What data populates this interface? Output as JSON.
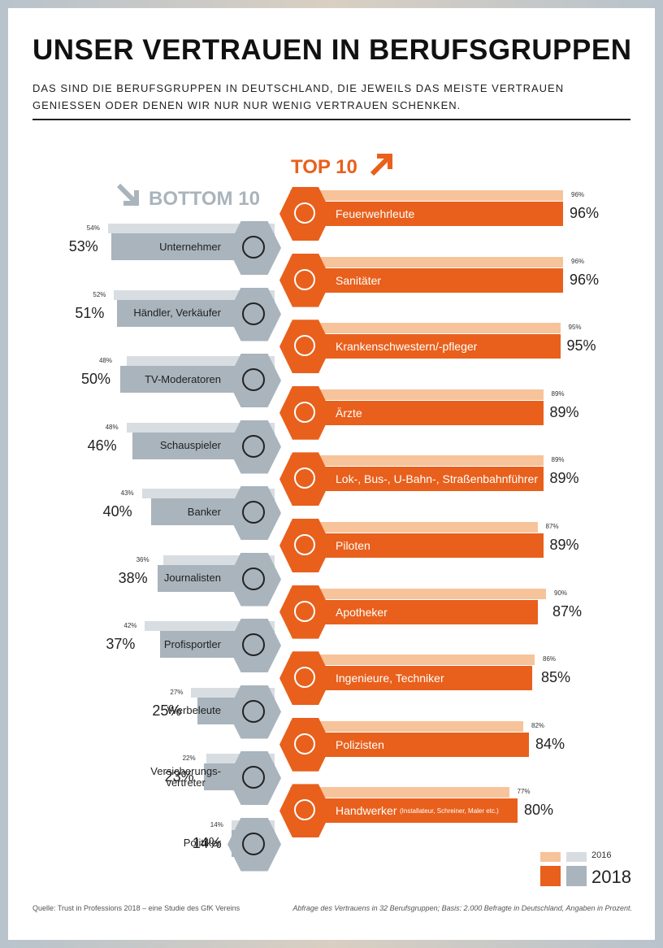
{
  "header": {
    "title": "UNSER VERTRAUEN IN BERUFSGRUPPEN",
    "subtitle": "DAS SIND DIE BERUFSGRUPPEN IN DEUTSCHLAND, DIE JEWEILS DAS MEISTE VERTRAUEN GENIESSEN ODER DENEN WIR NUR NUR WENIG VERTRAUEN SCHENKEN."
  },
  "chart_data": [
    {
      "type": "bar",
      "title": "TOP 10",
      "categories": [
        "Feuerwehrleute",
        "Sanitäter",
        "Krankenschwestern/-pfleger",
        "Ärzte",
        "Lok-, Bus-, U-Bahn-, Straßenbahnführer",
        "Piloten",
        "Apotheker",
        "Ingenieure, Techniker",
        "Polizisten",
        "Handwerker"
      ],
      "note": "(Installateur, Schreiner, Maler etc.)",
      "series": [
        {
          "name": "2016",
          "color": "#f7c39b",
          "values": [
            96,
            96,
            95,
            89,
            89,
            87,
            90,
            86,
            82,
            77
          ],
          "value_labels": [
            "96%",
            "96%",
            "95%",
            "89%",
            "89%",
            "87%",
            "90%",
            "86%",
            "82%",
            "77%"
          ]
        },
        {
          "name": "2018",
          "color": "#e8601c",
          "values": [
            96,
            96,
            95,
            89,
            89,
            89,
            87,
            85,
            84,
            80
          ],
          "value_labels": [
            "96%",
            "96%",
            "95%",
            "89%",
            "89%",
            "89%",
            "87%",
            "85%",
            "84%",
            "80%"
          ]
        }
      ]
    },
    {
      "type": "bar",
      "title": "BOTTOM 10",
      "categories": [
        "Unternehmer",
        "Händler, Verkäufer",
        "TV-Moderatoren",
        "Schauspieler",
        "Banker",
        "Journalisten",
        "Profisportler",
        "Werbeleute",
        "Versicherungs-\nvertreter",
        "Politiker"
      ],
      "series": [
        {
          "color": "#d8dde2",
          "values": [
            54,
            52,
            48,
            48,
            43,
            36,
            42,
            27,
            22,
            14
          ],
          "value_labels": [
            "54%",
            "52%",
            "48%",
            "48%",
            "43%",
            "36%",
            "42%",
            "27%",
            "22%",
            "14%"
          ]
        },
        {
          "color": "#a9b4bd",
          "values": [
            53,
            51,
            50,
            46,
            40,
            38,
            37,
            25,
            23,
            14
          ],
          "value_labels": [
            "53%",
            "51%",
            "50%",
            "46%",
            "40%",
            "38%",
            "37%",
            "25%",
            "23%",
            "14%"
          ]
        }
      ]
    }
  ],
  "footer": {
    "source": "Quelle: Trust in Professions 2018 – eine Studie des GfK Vereins",
    "note": "Abfrage des Vertrauens in 32 Berufsgruppen; Basis: 2.000 Befragte in Deutschland, Angaben in Prozent."
  }
}
